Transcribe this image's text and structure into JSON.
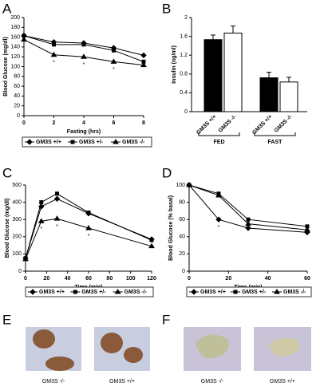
{
  "panel_labels": [
    "A",
    "B",
    "C",
    "D",
    "E",
    "F"
  ],
  "chart_data": [
    {
      "type": "line",
      "ylabel": "Blood Glucose (mg/dl)",
      "xlabel": "Fasting (hrs)",
      "x": [
        0,
        2,
        4,
        6,
        8
      ],
      "xlim": [
        0,
        8
      ],
      "xticks": [
        0,
        2,
        4,
        6,
        8
      ],
      "ylim": [
        0,
        200
      ],
      "yticks": [
        0,
        20,
        40,
        60,
        80,
        100,
        120,
        140,
        160,
        180,
        200
      ],
      "series": [
        {
          "name": "GM3S +/+",
          "marker": "diamond",
          "color": "#000",
          "values": [
            163,
            150,
            148,
            138,
            123
          ]
        },
        {
          "name": "GM3S +/-",
          "marker": "square",
          "color": "#000",
          "values": [
            163,
            145,
            145,
            133,
            110
          ]
        },
        {
          "name": "GM3S -/-",
          "marker": "triangle",
          "color": "#000",
          "values": [
            155,
            124,
            120,
            110,
            103
          ]
        }
      ],
      "annotations": [
        {
          "text": "*",
          "x": 2
        },
        {
          "text": "*",
          "x": 4
        },
        {
          "text": "*",
          "x": 6
        }
      ]
    },
    {
      "type": "bar",
      "ylabel": "Insulin (ng/ml)",
      "categories": [
        "GM3S +/+",
        "GM3S -/-",
        "GM3S +/+",
        "GM3S -/-"
      ],
      "groups": [
        "FED",
        "FAST"
      ],
      "values": [
        1.53,
        1.67,
        0.72,
        0.63
      ],
      "errors": [
        0.1,
        0.15,
        0.12,
        0.1
      ],
      "colors": [
        "#000",
        "#fff",
        "#000",
        "#fff"
      ],
      "ylim": [
        0,
        2
      ],
      "yticks": [
        0,
        0.4,
        0.8,
        1.2,
        1.6,
        2
      ]
    },
    {
      "type": "line",
      "ylabel": "Blood Glucose (mg/dl)",
      "xlabel": "Time (min)",
      "x": [
        0,
        15,
        30,
        60,
        120
      ],
      "xlim": [
        0,
        120
      ],
      "xticks": [
        0,
        20,
        40,
        60,
        80,
        100,
        120
      ],
      "ylim": [
        0,
        500
      ],
      "yticks": [
        0,
        100,
        200,
        300,
        400,
        500
      ],
      "series": [
        {
          "name": "GM3S +/+",
          "marker": "diamond",
          "color": "#000",
          "values": [
            75,
            375,
            420,
            335,
            185
          ]
        },
        {
          "name": "GM3S +/-",
          "marker": "square",
          "color": "#000",
          "values": [
            75,
            400,
            450,
            340,
            180
          ]
        },
        {
          "name": "GM3S -/-",
          "marker": "triangle",
          "color": "#000",
          "values": [
            70,
            290,
            305,
            250,
            145
          ]
        }
      ],
      "annotations": [
        {
          "text": "*",
          "x": 15
        },
        {
          "text": "*",
          "x": 30
        },
        {
          "text": "*",
          "x": 60
        }
      ]
    },
    {
      "type": "line",
      "ylabel": "Blood Glucose (% basal)",
      "xlabel": "Time (min)",
      "x": [
        0,
        15,
        30,
        60
      ],
      "xlim": [
        0,
        60
      ],
      "xticks": [
        0,
        20,
        40,
        60
      ],
      "ylim": [
        0,
        100
      ],
      "yticks": [
        0,
        20,
        40,
        60,
        80,
        100
      ],
      "series": [
        {
          "name": "GM3S +/+",
          "marker": "diamond",
          "color": "#000",
          "values": [
            100,
            60,
            50,
            45
          ]
        },
        {
          "name": "GM3S +/-",
          "marker": "square",
          "color": "#000",
          "values": [
            100,
            90,
            60,
            52
          ]
        },
        {
          "name": "GM3S -/-",
          "marker": "triangle",
          "color": "#000",
          "values": [
            100,
            88,
            55,
            48
          ]
        }
      ],
      "annotations": [
        {
          "text": "*",
          "x": 15
        }
      ]
    }
  ],
  "micrograph_captions": [
    [
      "GM3S -/-",
      "GM3S +/+"
    ],
    [
      "GM3S -/-",
      "GM3S +/+"
    ]
  ]
}
